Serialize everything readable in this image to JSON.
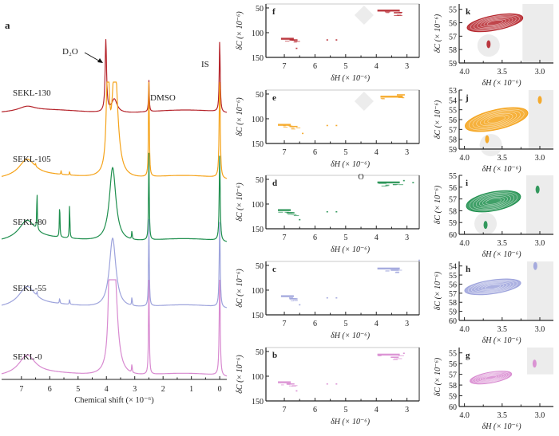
{
  "figure": {
    "colors": {
      "SEKL-130": "#b5242b",
      "SEKL-105": "#f5a31a",
      "SEKL-80": "#1f8f4e",
      "SEKL-55": "#9da3dc",
      "SEKL-0": "#d88ad0",
      "axis": "#222222",
      "shade": "#ececec"
    }
  },
  "chart_data": [
    {
      "panel": "a",
      "type": "line",
      "title": "",
      "xlabel": "Chemical shift (× 10⁻⁶)",
      "ylabel": "",
      "xlim": [
        7.7,
        -0.25
      ],
      "x_ticks": [
        "7",
        "6",
        "5",
        "4",
        "3",
        "2",
        "1",
        "0"
      ],
      "annotations": [
        {
          "text": "D₂O",
          "x": 4.02,
          "arrow": true
        },
        {
          "text": "DMSO",
          "x": 2.5
        },
        {
          "text": "IS",
          "x": 0.0
        }
      ],
      "series": [
        {
          "name": "SEKL-130",
          "label": "SEKL-130",
          "peaks": [
            {
              "x": 6.8,
              "h": 0.06,
              "w": 0.35
            },
            {
              "x": 4.02,
              "h": 0.95,
              "w": 0.03
            },
            {
              "x": 3.72,
              "h": 0.18,
              "w": 0.12
            },
            {
              "x": 2.5,
              "h": 0.42,
              "w": 0.015
            },
            {
              "x": 0.0,
              "h": 0.95,
              "w": 0.02
            }
          ]
        },
        {
          "name": "SEKL-105",
          "label": "SEKL-105",
          "peaks": [
            {
              "x": 6.8,
              "h": 0.18,
              "w": 0.35
            },
            {
              "x": 3.95,
              "h": 1.3,
              "w": 0.05
            },
            {
              "x": 3.7,
              "h": 1.2,
              "w": 0.12
            },
            {
              "x": 6.5,
              "h": 0.03,
              "w": 0.01
            },
            {
              "x": 5.6,
              "h": 0.04,
              "w": 0.01
            },
            {
              "x": 5.3,
              "h": 0.04,
              "w": 0.01
            },
            {
              "x": 2.5,
              "h": 1.2,
              "w": 0.015
            },
            {
              "x": 0.0,
              "h": 1.2,
              "w": 0.02
            }
          ]
        },
        {
          "name": "SEKL-80",
          "label": "SEKL-80",
          "peaks": [
            {
              "x": 6.8,
              "h": 0.22,
              "w": 0.35
            },
            {
              "x": 6.45,
              "h": 0.45,
              "w": 0.012
            },
            {
              "x": 5.65,
              "h": 0.4,
              "w": 0.012
            },
            {
              "x": 5.3,
              "h": 0.4,
              "w": 0.012
            },
            {
              "x": 3.78,
              "h": 0.85,
              "w": 0.14
            },
            {
              "x": 3.1,
              "h": 0.1,
              "w": 0.012
            },
            {
              "x": 2.5,
              "h": 1.0,
              "w": 0.015
            },
            {
              "x": 0.0,
              "h": 1.0,
              "w": 0.02
            }
          ]
        },
        {
          "name": "SEKL-55",
          "label": "SEKL-55",
          "peaks": [
            {
              "x": 6.8,
              "h": 0.22,
              "w": 0.35
            },
            {
              "x": 6.45,
              "h": 0.05,
              "w": 0.012
            },
            {
              "x": 5.65,
              "h": 0.06,
              "w": 0.012
            },
            {
              "x": 5.3,
              "h": 0.06,
              "w": 0.012
            },
            {
              "x": 3.78,
              "h": 0.8,
              "w": 0.14
            },
            {
              "x": 3.1,
              "h": 0.1,
              "w": 0.012
            },
            {
              "x": 2.5,
              "h": 1.0,
              "w": 0.015
            },
            {
              "x": 0.0,
              "h": 1.0,
              "w": 0.02
            }
          ]
        },
        {
          "name": "SEKL-0",
          "label": "SEKL-0",
          "peaks": [
            {
              "x": 6.8,
              "h": 0.22,
              "w": 0.35
            },
            {
              "x": 3.88,
              "h": 1.3,
              "w": 0.05
            },
            {
              "x": 3.72,
              "h": 1.25,
              "w": 0.12
            },
            {
              "x": 3.1,
              "h": 0.1,
              "w": 0.012
            },
            {
              "x": 2.5,
              "h": 1.2,
              "w": 0.015
            },
            {
              "x": 0.0,
              "h": 1.2,
              "w": 0.02
            }
          ]
        }
      ]
    },
    {
      "panels_type": "heatmap",
      "description": "2D HSQC spectra, full range",
      "xlabel": "δH (× 10⁻⁶)",
      "ylabel": "δC (× 10⁻⁶)",
      "xlim": [
        7.6,
        2.6
      ],
      "ylim": [
        50,
        150
      ],
      "x_ticks": [
        "7",
        "6",
        "5",
        "4",
        "3"
      ],
      "y_ticks": [
        "50",
        "100",
        "150"
      ],
      "panels": [
        {
          "panel": "f",
          "sample": "SEKL-130",
          "cross_peaks": [
            {
              "x": 3.6,
              "y": 55
            },
            {
              "x": 3.3,
              "y": 60
            },
            {
              "x": 6.9,
              "y": 112
            },
            {
              "x": 6.7,
              "y": 115
            },
            {
              "x": 6.6,
              "y": 132
            },
            {
              "x": 5.6,
              "y": 115
            },
            {
              "x": 5.3,
              "y": 115
            }
          ],
          "shade": "diamond",
          "circle": false
        },
        {
          "panel": "e",
          "sample": "SEKL-105",
          "cross_peaks": [
            {
              "x": 3.5,
              "y": 55
            },
            {
              "x": 3.2,
              "y": 52
            },
            {
              "x": 7.0,
              "y": 112
            },
            {
              "x": 6.7,
              "y": 116
            },
            {
              "x": 6.4,
              "y": 130
            },
            {
              "x": 5.6,
              "y": 114
            },
            {
              "x": 5.3,
              "y": 114
            }
          ],
          "shade": "diamond",
          "circle": false
        },
        {
          "panel": "d",
          "sample": "SEKL-80",
          "cross_peaks": [
            {
              "x": 3.6,
              "y": 56
            },
            {
              "x": 3.8,
              "y": 58
            },
            {
              "x": 7.0,
              "y": 112
            },
            {
              "x": 6.8,
              "y": 118
            },
            {
              "x": 6.5,
              "y": 132
            },
            {
              "x": 5.6,
              "y": 116
            },
            {
              "x": 5.3,
              "y": 116
            },
            {
              "x": 3.1,
              "y": 53
            },
            {
              "x": 2.8,
              "y": 57
            }
          ],
          "shade": "none",
          "circle": true,
          "circle_label": "O"
        },
        {
          "panel": "c",
          "sample": "SEKL-55",
          "cross_peaks": [
            {
              "x": 3.6,
              "y": 56
            },
            {
              "x": 3.4,
              "y": 60
            },
            {
              "x": 6.9,
              "y": 112
            },
            {
              "x": 6.7,
              "y": 118
            },
            {
              "x": 6.5,
              "y": 130
            },
            {
              "x": 5.6,
              "y": 116
            },
            {
              "x": 5.3,
              "y": 116
            },
            {
              "x": 2.6,
              "y": 40
            }
          ],
          "shade": "none",
          "circle": false
        },
        {
          "panel": "b",
          "sample": "SEKL-0",
          "cross_peaks": [
            {
              "x": 3.6,
              "y": 56
            },
            {
              "x": 3.4,
              "y": 62
            },
            {
              "x": 7.0,
              "y": 112
            },
            {
              "x": 6.8,
              "y": 116
            },
            {
              "x": 6.6,
              "y": 130
            },
            {
              "x": 5.6,
              "y": 116
            },
            {
              "x": 5.3,
              "y": 116
            },
            {
              "x": 3.1,
              "y": 54
            }
          ],
          "shade": "none",
          "circle": false
        }
      ]
    },
    {
      "panels_type": "heatmap",
      "description": "HSQC methoxyl region zoom",
      "xlabel": "δH (× 10⁻⁶)",
      "ylabel": "δC (× 10⁻⁶)",
      "x_ticks": [
        "4.0",
        "3.5",
        "3.0"
      ],
      "panels": [
        {
          "panel": "k",
          "sample": "SEKL-130",
          "ylim": [
            54.6,
            59
          ],
          "y_ticks": [
            "55",
            "56",
            "57",
            "58",
            "59"
          ],
          "blob": {
            "x0": 3.97,
            "x1": 3.22,
            "yc": 56.0,
            "tilt": 0.8,
            "thick": 1.1
          },
          "minor": [
            {
              "x": 3.68,
              "y": 57.6
            }
          ],
          "gray_band_from": 3.23,
          "gray_circle": {
            "x": 3.68,
            "y": 57.7
          }
        },
        {
          "panel": "j",
          "sample": "SEKL-105",
          "ylim": [
            53,
            59
          ],
          "y_ticks": [
            "53",
            "54",
            "55",
            "56",
            "57",
            "58",
            "59"
          ],
          "blob": {
            "x0": 4.0,
            "x1": 3.15,
            "yc": 56.0,
            "tilt": 1.5,
            "thick": 2.0
          },
          "minor": [
            {
              "x": 3.7,
              "y": 58.0
            },
            {
              "x": 3.0,
              "y": 54.0
            }
          ],
          "gray_band_from": 3.15,
          "gray_circle": {
            "x": 3.65,
            "y": 58.6
          }
        },
        {
          "panel": "i",
          "sample": "SEKL-80",
          "ylim": [
            55,
            60
          ],
          "y_ticks": [
            "55",
            "56",
            "57",
            "58",
            "59",
            "60"
          ],
          "blob": {
            "x0": 3.98,
            "x1": 3.25,
            "yc": 57.2,
            "tilt": 0.9,
            "thick": 1.6
          },
          "minor": [
            {
              "x": 3.72,
              "y": 59.2
            },
            {
              "x": 3.03,
              "y": 56.2
            }
          ],
          "gray_band_from": 3.18,
          "gray_circle": {
            "x": 3.72,
            "y": 59.1
          }
        },
        {
          "panel": "h",
          "sample": "SEKL-55",
          "ylim": [
            53.5,
            60
          ],
          "y_ticks": [
            "54",
            "55",
            "56",
            "57",
            "58",
            "59",
            "60"
          ],
          "blob": {
            "x0": 4.0,
            "x1": 3.25,
            "yc": 56.3,
            "tilt": 0.9,
            "thick": 1.5
          },
          "minor": [
            {
              "x": 3.06,
              "y": 54.0
            }
          ],
          "gray_band_from": 3.17,
          "gray_circle": null
        },
        {
          "panel": "g",
          "sample": "SEKL-0",
          "ylim": [
            54.5,
            60
          ],
          "y_ticks": [
            "55",
            "56",
            "57",
            "58",
            "59",
            "60"
          ],
          "blob": {
            "x0": 3.93,
            "x1": 3.37,
            "yc": 57.3,
            "tilt": 0.7,
            "thick": 1.0
          },
          "minor": [
            {
              "x": 3.07,
              "y": 56.0
            }
          ],
          "gray_band_from": 3.17,
          "gray_band_to_y": 57.0,
          "gray_circle": null
        }
      ]
    }
  ]
}
